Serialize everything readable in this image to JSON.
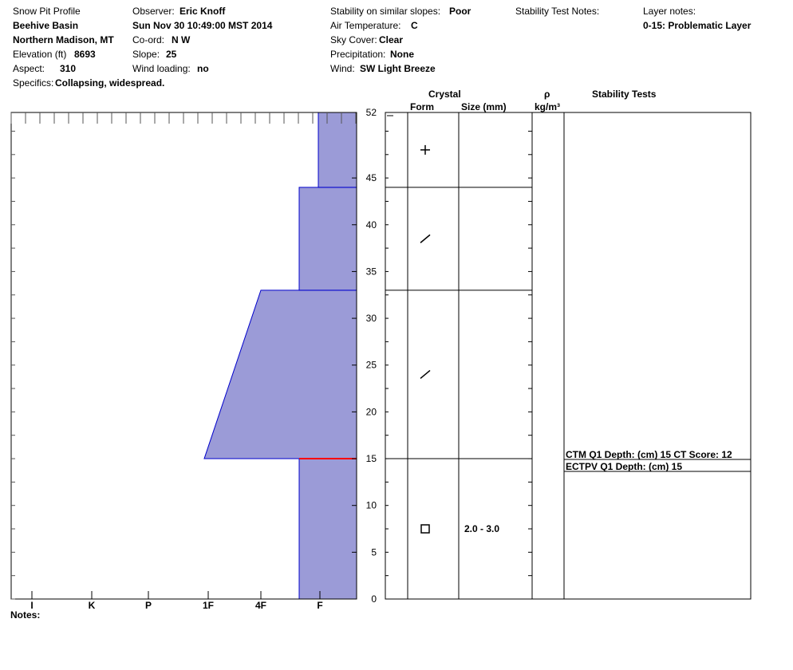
{
  "header": {
    "report_title": "Snow Pit Profile",
    "location": "Beehive Basin",
    "region": "Northern Madison, MT",
    "elevation_label": "Elevation (ft)",
    "elevation_value": "8693",
    "aspect_label": "Aspect:",
    "aspect_value": "310",
    "specifics_label": "Specifics:",
    "specifics_value": "Collapsing, widespread.",
    "observer_label": "Observer:",
    "observer_value": "Eric Knoff",
    "datetime": "Sun Nov 30 10:49:00 MST 2014",
    "coord_label": "Co-ord:",
    "coord_value": "N  W",
    "slope_label": "Slope:",
    "slope_value": "25",
    "wind_loading_label": "Wind loading:",
    "wind_loading_value": "no",
    "stability_label": "Stability on similar slopes:",
    "stability_value": "Poor",
    "air_temp_label": "Air Temperature:",
    "air_temp_value": "C",
    "sky_label": "Sky Cover:",
    "sky_value": "Clear",
    "precip_label": "Precipitation:",
    "precip_value": "None",
    "wind_label": "Wind:",
    "wind_value": "SW Light Breeze",
    "stability_notes_label": "Stability Test Notes:",
    "layer_notes_label": "Layer notes:",
    "layer_notes_value": "0-15: Problematic Layer"
  },
  "table_headers": {
    "crystal": "Crystal",
    "form": "Form",
    "size": "Size (mm)",
    "rho": "ρ",
    "density_unit": "kg/m³",
    "stability_tests": "Stability Tests"
  },
  "notes_label": "Notes:",
  "stability_tests": [
    "CTM Q1 Depth: (cm) 15 CT Score: 12",
    "ECTPV Q1 Depth: (cm) 15"
  ],
  "colors": {
    "hardness_fill": "#9b9bd7",
    "hardness_stroke": "#0000cc",
    "weak_layer": "#ff0000",
    "frame": "#000000"
  },
  "chart_data": {
    "type": "area",
    "title": "Snow Pit Profile",
    "ylim": [
      0,
      52
    ],
    "yticks": [
      0,
      5,
      10,
      15,
      20,
      25,
      30,
      35,
      40,
      45,
      52
    ],
    "x_categories": [
      "I",
      "K",
      "P",
      "1F",
      "4F",
      "F"
    ],
    "hardness_profile": [
      {
        "bottom": 0,
        "top": 15,
        "hardness_bottom": "4F-",
        "hardness_top": "4F-"
      },
      {
        "bottom": 15,
        "top": 33,
        "hardness_bottom": "1F-",
        "hardness_top": "4F"
      },
      {
        "bottom": 33,
        "top": 44,
        "hardness_bottom": "4F-",
        "hardness_top": "4F-"
      },
      {
        "bottom": 44,
        "top": 52,
        "hardness_bottom": "F+",
        "hardness_top": "F+"
      }
    ],
    "weak_layer_depth": 15,
    "layer_boundaries": [
      15,
      33,
      44
    ],
    "crystal_layers": [
      {
        "depth": 7.5,
        "form": "square",
        "size": "2.0 - 3.0"
      },
      {
        "depth": 24,
        "form": "slash",
        "size": ""
      },
      {
        "depth": 38.5,
        "form": "slash",
        "size": ""
      },
      {
        "depth": 48,
        "form": "plus",
        "size": ""
      }
    ]
  }
}
